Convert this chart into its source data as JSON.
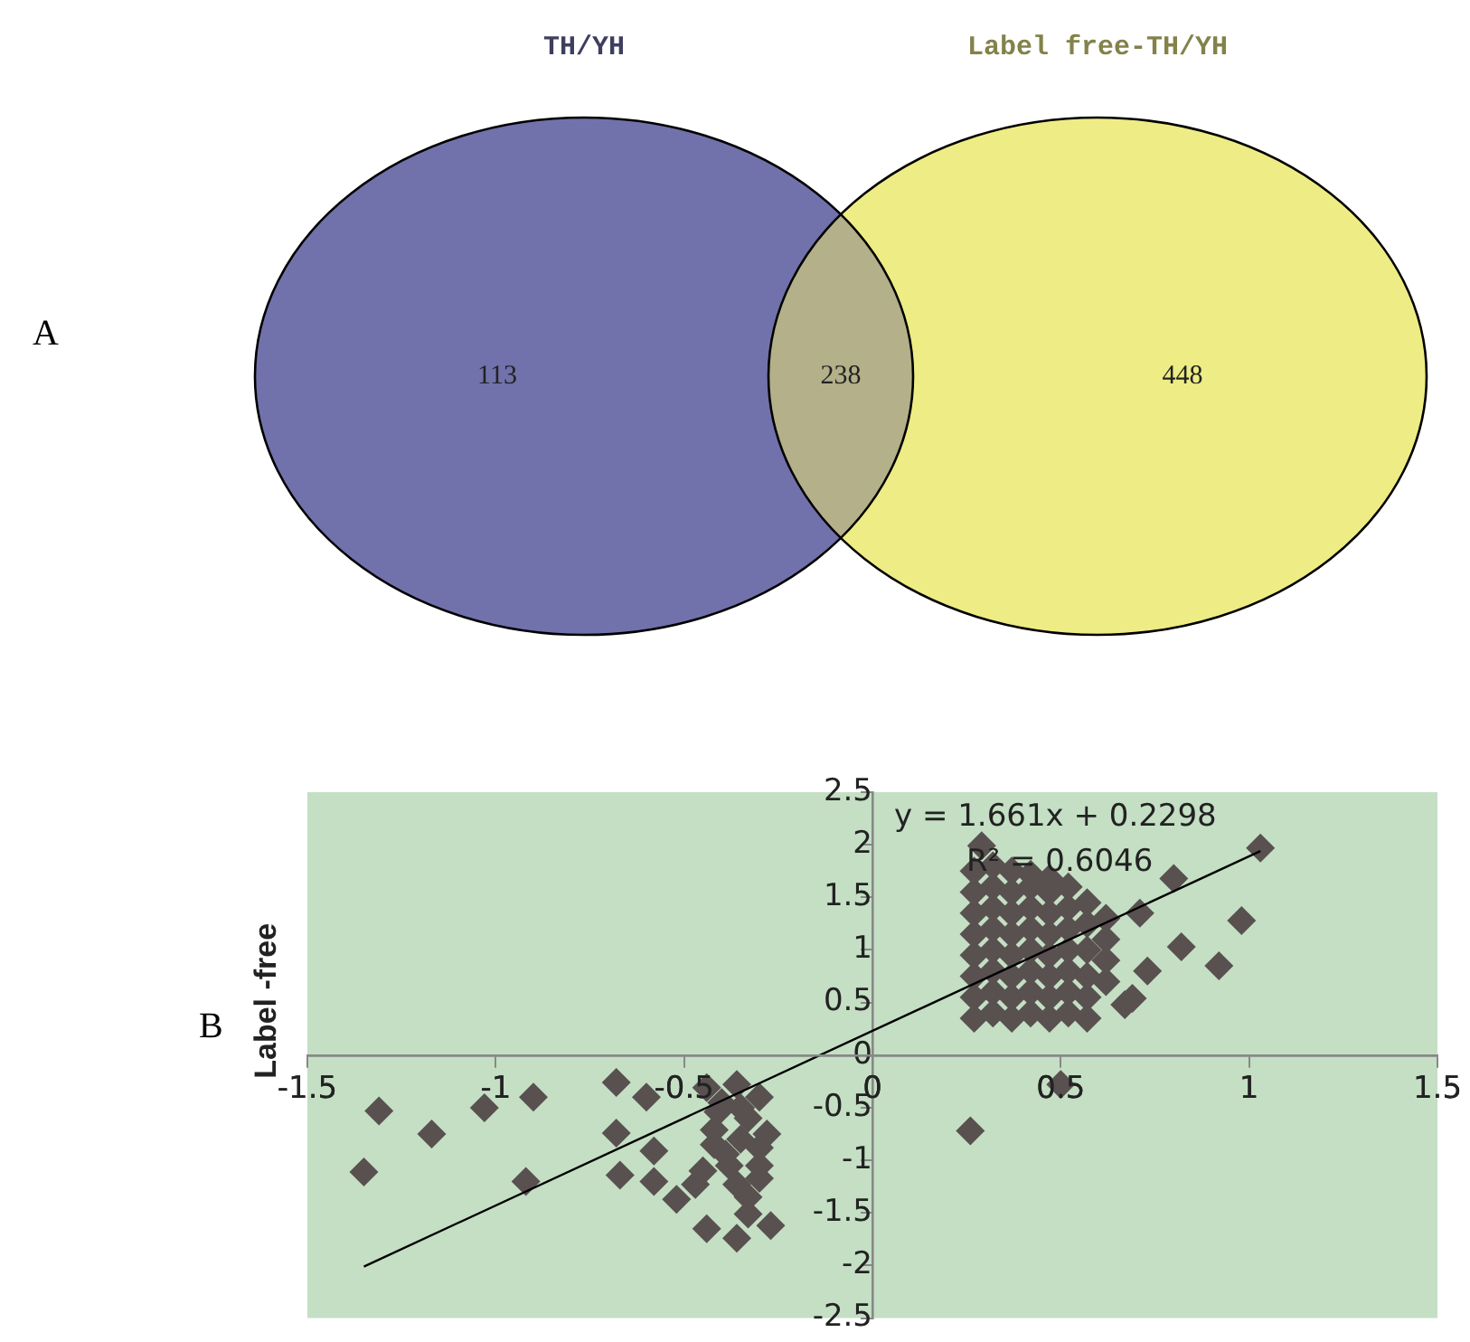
{
  "chart_data": [
    {
      "type": "other",
      "title": "A",
      "categories": [
        null,
        null,
        null
      ],
      "values": [
        113,
        238,
        448
      ],
      "data_labels": true,
      "colors": [
        "#7171ab",
        "#b3b08a",
        "#eeec84"
      ],
      "annotations": [
        "TH/YH",
        "Label free-TH/YH"
      ]
    },
    {
      "type": "scatter",
      "title": "B",
      "ylabel": "Label -free",
      "marker": "diamond",
      "xlim": [
        -1.5,
        1.5
      ],
      "xticks": [
        -1.5,
        -1,
        -0.5,
        0,
        0.5,
        1,
        1.5
      ],
      "ylim": [
        -2.5,
        2.5
      ],
      "yticks": [
        -2.5,
        -2,
        -1.5,
        -1,
        -0.5,
        0,
        0.5,
        1,
        1.5,
        2,
        2.5
      ],
      "annotations": [
        "y = 1.661x + 0.2298",
        "R² = 0.6046"
      ],
      "series": [
        {
          "color": "#595050",
          "x": [
            -1.31,
            -1.35,
            -1.17,
            -1.03,
            -0.9,
            -0.92,
            -0.68,
            -0.6,
            -0.68,
            -0.58,
            -0.67,
            -0.58,
            -0.52,
            -0.47,
            -0.44,
            -0.36,
            -0.42,
            -0.33,
            -0.3,
            -0.39,
            -0.3,
            -0.36,
            -0.44,
            -0.36,
            -0.27,
            -0.33,
            -0.41,
            -0.4,
            -0.35,
            -0.3,
            -0.42,
            -0.35,
            -0.3,
            -0.38,
            -0.45,
            -0.28,
            -0.33,
            0.5,
            0.26,
            1.03,
            0.8,
            0.71,
            0.98,
            0.82,
            0.92,
            0.73,
            0.69,
            0.67,
            0.29,
            0.27,
            0.27,
            0.27,
            0.27,
            0.27,
            0.27,
            0.27,
            0.27,
            0.32,
            0.32,
            0.32,
            0.32,
            0.32,
            0.32,
            0.32,
            0.32,
            0.37,
            0.37,
            0.37,
            0.37,
            0.37,
            0.37,
            0.37,
            0.37,
            0.42,
            0.42,
            0.42,
            0.42,
            0.42,
            0.42,
            0.42,
            0.42,
            0.47,
            0.47,
            0.47,
            0.47,
            0.47,
            0.47,
            0.47,
            0.47,
            0.52,
            0.52,
            0.52,
            0.52,
            0.52,
            0.52,
            0.52,
            0.57,
            0.57,
            0.57,
            0.57,
            0.57,
            0.57,
            0.62,
            0.62,
            0.62,
            0.62
          ],
          "values": [
            -0.53,
            -1.11,
            -0.75,
            -0.5,
            -0.4,
            -1.2,
            -0.26,
            -0.4,
            -0.74,
            -0.91,
            -1.14,
            -1.2,
            -1.37,
            -1.23,
            -0.31,
            -0.28,
            -0.71,
            -0.6,
            -0.88,
            -0.94,
            -1.17,
            -1.23,
            -1.65,
            -1.74,
            -1.62,
            -1.51,
            -0.54,
            -0.45,
            -0.5,
            -0.4,
            -0.85,
            -0.8,
            -1.05,
            -1.05,
            -1.1,
            -0.75,
            -1.35,
            -0.28,
            -0.72,
            1.97,
            1.68,
            1.35,
            1.28,
            1.03,
            0.85,
            0.8,
            0.54,
            0.48,
            1.99,
            0.35,
            0.55,
            0.75,
            0.95,
            1.15,
            1.35,
            1.55,
            1.75,
            0.4,
            0.6,
            0.8,
            1.0,
            1.2,
            1.4,
            1.6,
            1.8,
            0.35,
            0.55,
            0.75,
            0.95,
            1.15,
            1.35,
            1.55,
            1.75,
            0.4,
            0.6,
            0.8,
            1.0,
            1.2,
            1.4,
            1.6,
            1.72,
            0.35,
            0.55,
            0.75,
            0.95,
            1.15,
            1.35,
            1.55,
            1.68,
            0.4,
            0.6,
            0.8,
            1.0,
            1.2,
            1.4,
            1.6,
            0.35,
            0.55,
            0.75,
            1.0,
            1.25,
            1.45,
            0.7,
            0.9,
            1.1,
            1.3
          ]
        },
        {
          "type": "line",
          "marker": "none",
          "color": "#000000",
          "x": [
            -1.35,
            1.03
          ],
          "values": [
            -2.01,
            1.94
          ]
        }
      ]
    }
  ]
}
